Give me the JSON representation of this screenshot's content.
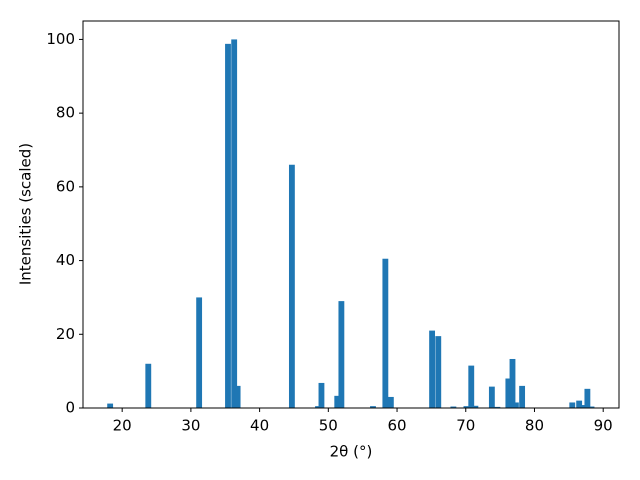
{
  "chart_data": {
    "type": "bar",
    "x_label": "2θ (°)",
    "y_label": "Intensities (scaled)",
    "x": [
      18.25,
      23.8,
      31.2,
      35.4,
      36.3,
      36.8,
      44.7,
      48.5,
      49.0,
      51.3,
      51.9,
      56.5,
      58.3,
      59.1,
      65.1,
      66.0,
      68.2,
      70.1,
      70.8,
      71.4,
      73.8,
      74.6,
      76.2,
      76.8,
      77.3,
      78.2,
      85.5,
      86.5,
      87.1,
      87.7,
      88.3
    ],
    "values": [
      1.2,
      12,
      30,
      98.8,
      100,
      6,
      66,
      0.5,
      6.8,
      3.3,
      29,
      0.5,
      40.5,
      3,
      21,
      19.5,
      0.4,
      0.5,
      11.5,
      0.6,
      5.8,
      0.3,
      8,
      13.3,
      1.5,
      6,
      1.5,
      2,
      0.8,
      5.2,
      0.4
    ],
    "color": "#1f77b4",
    "xlim": [
      14.3,
      92.3
    ],
    "ylim": [
      0,
      105
    ],
    "xticks": [
      20,
      30,
      40,
      50,
      60,
      70,
      80,
      90
    ],
    "yticks": [
      0,
      20,
      40,
      60,
      80,
      100
    ]
  }
}
